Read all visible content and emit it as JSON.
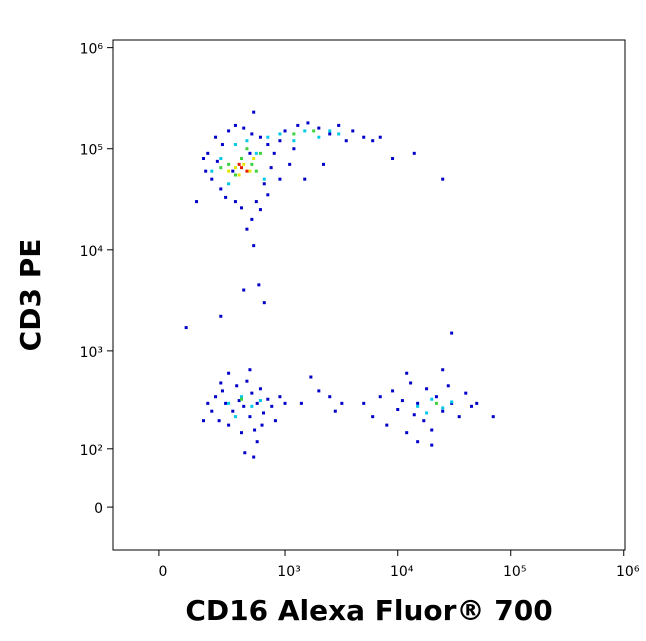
{
  "chart_data": {
    "type": "scatter",
    "x_label": "CD16 Alexa Fluor® 700",
    "y_label": "CD3 PE",
    "scale": "biexponential",
    "xlim": [
      -166,
      1026000
    ],
    "ylim": [
      -65,
      1190000
    ],
    "xticks": [
      0,
      {
        "value": 1000,
        "label": "10³"
      },
      {
        "value": 10000,
        "label": "10⁴"
      },
      {
        "value": 100000,
        "label": "10⁵"
      },
      {
        "value": 1000000,
        "label": "10⁶"
      }
    ],
    "yticks": [
      0,
      {
        "value": 100,
        "label": "10²"
      },
      {
        "value": 1000,
        "label": "10³"
      },
      {
        "value": 10000,
        "label": "10⁴"
      },
      {
        "value": 100000,
        "label": "10⁵"
      },
      {
        "value": 1000000,
        "label": "10⁶"
      }
    ],
    "series": [
      {
        "color": "#0000c8",
        "x": [
          180,
          220,
          260,
          300,
          350,
          420,
          500,
          600,
          700,
          800,
          900,
          1000,
          1300,
          1600,
          2000,
          2500,
          3000,
          3500,
          4000,
          5000,
          6000,
          7000,
          1100,
          900,
          700,
          600,
          500,
          400,
          350,
          250,
          200,
          170,
          160,
          230,
          280,
          450,
          550,
          650,
          750,
          1200,
          1500,
          2200,
          9000,
          14000,
          25000,
          130,
          520,
          580,
          420,
          650,
          90,
          250,
          520,
          480,
          330,
          180,
          200,
          220,
          240,
          260,
          280,
          300,
          330,
          360,
          380,
          400,
          420,
          450,
          480,
          500,
          530,
          560,
          600,
          640,
          700,
          760,
          820,
          900,
          1000,
          300,
          480,
          560,
          520,
          430,
          160,
          250,
          620,
          1400,
          1700,
          2000,
          2500,
          2800,
          3200,
          5000,
          6000,
          7000,
          8000,
          9000,
          10000,
          11000,
          12000,
          13000,
          14000,
          15000,
          17000,
          18000,
          20000,
          22000,
          25000,
          28000,
          30000,
          35000,
          40000,
          45000,
          50000,
          70000,
          12000,
          25000,
          15000,
          20000,
          30000
        ],
        "values": [
          90000,
          130000,
          110000,
          150000,
          170000,
          160000,
          140000,
          130000,
          110000,
          90000,
          120000,
          150000,
          170000,
          180000,
          160000,
          140000,
          170000,
          120000,
          150000,
          130000,
          120000,
          130000,
          70000,
          50000,
          35000,
          25000,
          20000,
          26000,
          30000,
          40000,
          50000,
          60000,
          80000,
          75000,
          33000,
          16000,
          30000,
          45000,
          65000,
          100000,
          50000,
          70000,
          80000,
          90000,
          50000,
          30000,
          11000,
          4500,
          4000,
          3000,
          1700,
          2200,
          230000,
          90000,
          60000,
          300,
          250,
          350,
          200,
          400,
          300,
          180,
          250,
          450,
          320,
          150,
          280,
          500,
          220,
          380,
          160,
          300,
          420,
          240,
          330,
          280,
          200,
          350,
          300,
          600,
          650,
          120,
          80,
          90,
          200,
          480,
          180,
          300,
          550,
          400,
          350,
          250,
          300,
          300,
          220,
          350,
          180,
          400,
          260,
          320,
          150,
          480,
          230,
          300,
          200,
          420,
          160,
          350,
          250,
          450,
          300,
          220,
          380,
          280,
          300,
          220,
          600,
          650,
          120,
          110,
          1500
        ]
      },
      {
        "color": "#00c8e6",
        "x": [
          250,
          350,
          450,
          550,
          700,
          900,
          1200,
          1500,
          2000,
          2500,
          3000,
          200,
          650,
          300,
          300,
          400,
          500,
          350,
          600,
          15000,
          20000,
          25000,
          18000,
          30000
        ],
        "values": [
          80000,
          110000,
          120000,
          90000,
          130000,
          140000,
          120000,
          150000,
          130000,
          150000,
          140000,
          60000,
          50000,
          45000,
          300,
          350,
          280,
          220,
          320,
          280,
          330,
          270,
          240,
          310
        ]
      },
      {
        "color": "#3cd23c",
        "x": [
          300,
          400,
          500,
          350,
          600,
          450,
          1200,
          1800,
          250,
          550,
          400,
          22000
        ],
        "values": [
          70000,
          80000,
          70000,
          55000,
          90000,
          100000,
          140000,
          150000,
          65000,
          60000,
          330,
          300
        ]
      },
      {
        "color": "#e6e600",
        "x": [
          350,
          420,
          480,
          380,
          300,
          520
        ],
        "values": [
          65000,
          70000,
          60000,
          55000,
          60000,
          80000
        ]
      },
      {
        "color": "#e61e00",
        "x": [
          400,
          450,
          380
        ],
        "values": [
          65000,
          60000,
          70000
        ]
      }
    ]
  }
}
